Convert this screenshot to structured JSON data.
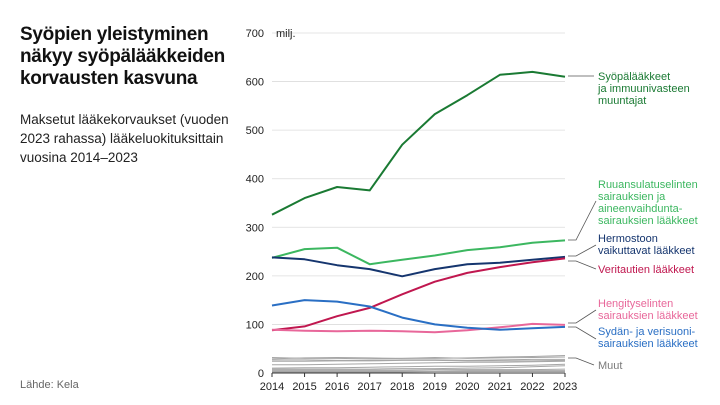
{
  "title": "Syöpien yleistyminen näkyy syöpälääkkeiden korvausten kasvuna",
  "subtitle": "Maksetut lääkekorvaukset (vuoden 2023 rahassa) lääkeluokituksittain vuosina 2014–2023",
  "source": "Lähde: Kela",
  "chart_data": {
    "type": "line",
    "title": "Syöpien yleistyminen näkyy syöpälääkkeiden korvausten kasvuna",
    "ylabel": "milj.",
    "ylim": [
      0,
      700
    ],
    "yticks": [
      0,
      100,
      200,
      300,
      400,
      500,
      600,
      700
    ],
    "y_unit_label": "milj.",
    "x": [
      2014,
      2015,
      2016,
      2017,
      2018,
      2019,
      2020,
      2021,
      2022,
      2023
    ],
    "series": [
      {
        "name": "Syöpälääkkeet ja immuunivasteen muuntajat",
        "label_lines": [
          "Syöpälääkkeet",
          "ja immuunivasteen",
          "muuntajat"
        ],
        "color": "#1a7a33",
        "values": [
          326,
          360,
          383,
          376,
          470,
          533,
          572,
          614,
          620,
          610
        ]
      },
      {
        "name": "Ruuansulatuselinten sairauksien ja aineenvaihduntasairauksien lääkkeet",
        "label_lines": [
          "Ruuansulatuselinten",
          "sairauksien ja",
          "aineenvaihdunta-",
          "sairauksien lääkkeet"
        ],
        "color": "#3cb760",
        "values": [
          237,
          255,
          258,
          224,
          233,
          242,
          253,
          259,
          268,
          273
        ]
      },
      {
        "name": "Hermostoon vaikuttavat lääkkeet",
        "label_lines": [
          "Hermostoon",
          "vaikuttavat lääkkeet"
        ],
        "color": "#15356e",
        "values": [
          238,
          234,
          222,
          214,
          199,
          214,
          224,
          227,
          233,
          239
        ]
      },
      {
        "name": "Veritautien lääkkeet",
        "label_lines": [
          "Veritautien lääkkeet"
        ],
        "color": "#c0174f",
        "values": [
          88,
          96,
          117,
          134,
          162,
          188,
          206,
          218,
          228,
          236
        ]
      },
      {
        "name": "Hengityselinten sairauksien lääkkeet",
        "label_lines": [
          "Hengityselinten",
          "sairauksien lääkkeet"
        ],
        "color": "#e8679a",
        "values": [
          89,
          87,
          86,
          87,
          86,
          84,
          88,
          94,
          101,
          99
        ]
      },
      {
        "name": "Sydän- ja verisuonisairauksien lääkkeet",
        "label_lines": [
          "Sydän- ja verisuoni-",
          "sairauksien lääkkeet"
        ],
        "color": "#2a6fc4",
        "values": [
          139,
          150,
          147,
          137,
          114,
          100,
          93,
          89,
          92,
          95
        ]
      }
    ],
    "other_label": "Muut",
    "other_color": "#a6a6a6",
    "other_series": [
      [
        32,
        30,
        30,
        29,
        30,
        30,
        31,
        33,
        34,
        36
      ],
      [
        29,
        31,
        32,
        31,
        30,
        32,
        30,
        31,
        32,
        33
      ],
      [
        27,
        27,
        26,
        26,
        27,
        27,
        26,
        27,
        28,
        28
      ],
      [
        24,
        24,
        25,
        25,
        26,
        26,
        25,
        25,
        25,
        26
      ],
      [
        17,
        17,
        18,
        19,
        20,
        21,
        22,
        22,
        23,
        24
      ],
      [
        10,
        11,
        11,
        12,
        13,
        14,
        14,
        15,
        16,
        18
      ],
      [
        8,
        8,
        8,
        8,
        9,
        9,
        10,
        11,
        13,
        15
      ],
      [
        6,
        6,
        6,
        6,
        6,
        7,
        7,
        7,
        7,
        8
      ],
      [
        4,
        4,
        4,
        4,
        4,
        4,
        5,
        5,
        5,
        5
      ],
      [
        2,
        2,
        2,
        2,
        2,
        3,
        3,
        3,
        3,
        3
      ]
    ]
  }
}
